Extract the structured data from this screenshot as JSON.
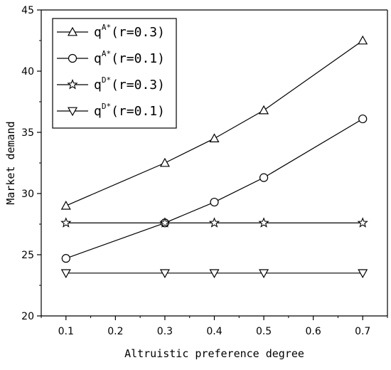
{
  "chart_data": {
    "type": "line",
    "xlabel": "Altruistic preference degree",
    "ylabel": "Market demand",
    "xlim": [
      0.05,
      0.75
    ],
    "ylim": [
      20,
      45
    ],
    "x_ticks": [
      "0.1",
      "0.2",
      "0.3",
      "0.4",
      "0.5",
      "0.6",
      "0.7"
    ],
    "y_ticks": [
      "20",
      "25",
      "30",
      "35",
      "40",
      "45"
    ],
    "grid": false,
    "legend_position": "top-left",
    "series": [
      {
        "label_base": "q",
        "label_sup": "A*",
        "label_param": "(r=0.3)",
        "marker": "triangle-up",
        "x": [
          0.1,
          0.3,
          0.4,
          0.5,
          0.7
        ],
        "values": [
          29.0,
          32.5,
          34.5,
          36.8,
          42.5
        ]
      },
      {
        "label_base": "q",
        "label_sup": "A*",
        "label_param": "(r=0.1)",
        "marker": "circle",
        "x": [
          0.1,
          0.3,
          0.4,
          0.5,
          0.7
        ],
        "values": [
          24.7,
          27.6,
          29.3,
          31.3,
          36.1
        ]
      },
      {
        "label_base": "q",
        "label_sup": "D*",
        "label_param": "(r=0.3)",
        "marker": "star",
        "x": [
          0.1,
          0.3,
          0.4,
          0.5,
          0.7
        ],
        "values": [
          27.6,
          27.6,
          27.6,
          27.6,
          27.6
        ]
      },
      {
        "label_base": "q",
        "label_sup": "D*",
        "label_param": "(r=0.1)",
        "marker": "triangle-down",
        "x": [
          0.1,
          0.3,
          0.4,
          0.5,
          0.7
        ],
        "values": [
          23.5,
          23.5,
          23.5,
          23.5,
          23.5
        ]
      }
    ],
    "colors": {
      "line": "#000000",
      "background": "#ffffff"
    }
  }
}
